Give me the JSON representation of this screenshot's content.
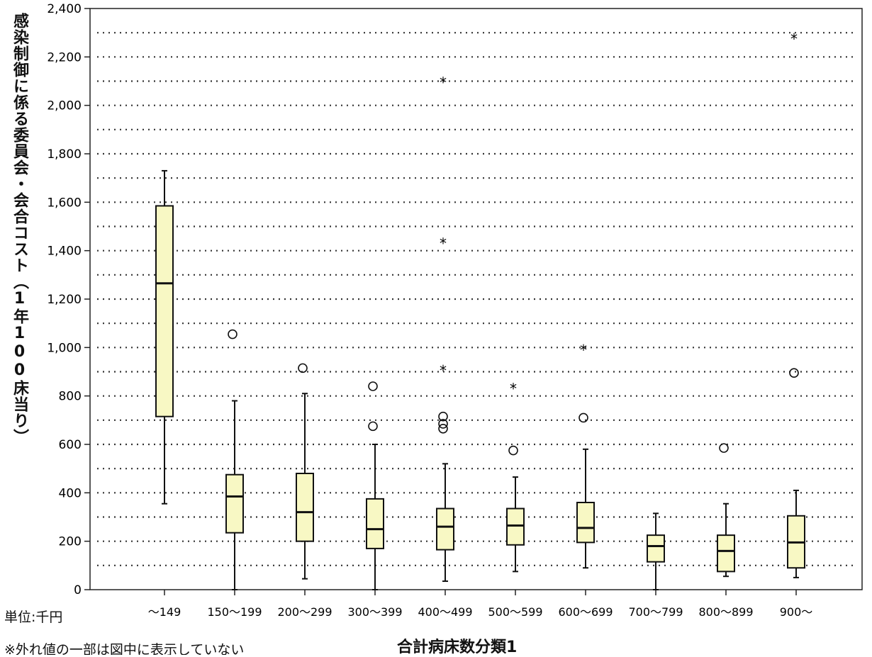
{
  "chart_data": {
    "type": "boxplot",
    "ylabel": "感染制御に係る委員会・会合コスト（1年100床当り）",
    "xlabel": "合計病床数分類1",
    "unit_label": "単位:千円",
    "note": "※外れ値の一部は図中に表示していない",
    "ylim": [
      0,
      2400
    ],
    "y_ticks": [
      "0",
      "200",
      "400",
      "600",
      "800",
      "1,000",
      "1,200",
      "1,400",
      "1,600",
      "1,800",
      "2,000",
      "2,200",
      "2,400"
    ],
    "y_tick_values": [
      0,
      200,
      400,
      600,
      800,
      1000,
      1200,
      1400,
      1600,
      1800,
      2000,
      2200,
      2400
    ],
    "grid": "dotted horizontal every 100",
    "categories": [
      "～149",
      "150～199",
      "200～299",
      "300～399",
      "400～499",
      "500～599",
      "600～699",
      "700～799",
      "800～899",
      "900～"
    ],
    "boxes": [
      {
        "min": 355,
        "q1": 715,
        "median": 1265,
        "q3": 1585,
        "max": 1730,
        "outliers": [],
        "extremes": []
      },
      {
        "min": 0,
        "q1": 235,
        "median": 385,
        "q3": 475,
        "max": 780,
        "outliers": [
          1055
        ],
        "extremes": []
      },
      {
        "min": 45,
        "q1": 200,
        "median": 320,
        "q3": 480,
        "max": 810,
        "outliers": [
          915
        ],
        "extremes": []
      },
      {
        "min": 0,
        "q1": 170,
        "median": 250,
        "q3": 375,
        "max": 600,
        "outliers": [
          840,
          675
        ],
        "extremes": []
      },
      {
        "min": 35,
        "q1": 165,
        "median": 260,
        "q3": 335,
        "max": 520,
        "outliers": [
          715,
          685,
          665
        ],
        "extremes": [
          2100,
          1435,
          910
        ]
      },
      {
        "min": 75,
        "q1": 185,
        "median": 265,
        "q3": 335,
        "max": 465,
        "outliers": [
          575
        ],
        "extremes": [
          835
        ]
      },
      {
        "min": 90,
        "q1": 195,
        "median": 255,
        "q3": 360,
        "max": 580,
        "outliers": [
          710
        ],
        "extremes": [
          995
        ]
      },
      {
        "min": 0,
        "q1": 115,
        "median": 180,
        "q3": 225,
        "max": 315,
        "outliers": [],
        "extremes": []
      },
      {
        "min": 55,
        "q1": 75,
        "median": 160,
        "q3": 225,
        "max": 355,
        "outliers": [
          585
        ],
        "extremes": []
      },
      {
        "min": 50,
        "q1": 90,
        "median": 195,
        "q3": 305,
        "max": 410,
        "outliers": [
          895
        ],
        "extremes": [
          2280
        ]
      }
    ],
    "box_fill": "#f8f8c4",
    "line_color": "#111111"
  }
}
